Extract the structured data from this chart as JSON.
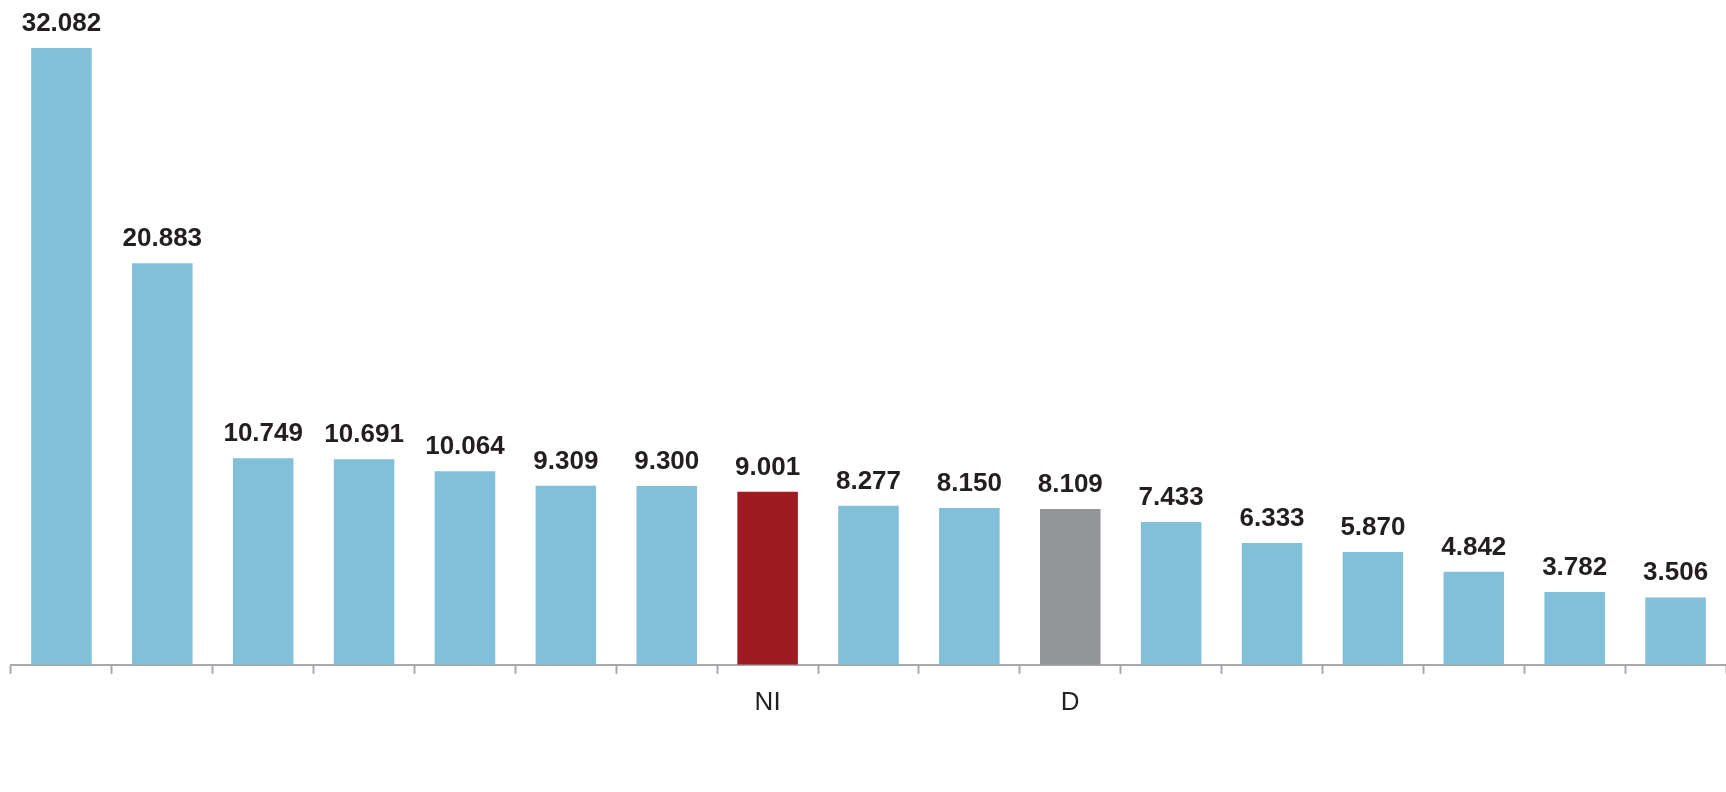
{
  "chart_data": {
    "type": "bar",
    "categories": [
      null,
      null,
      null,
      null,
      null,
      null,
      null,
      "NI",
      null,
      null,
      "D",
      null,
      null,
      null,
      null,
      null,
      null
    ],
    "values": [
      32.082,
      20.883,
      10.749,
      10.691,
      10.064,
      9.309,
      9.3,
      9.001,
      8.277,
      8.15,
      8.109,
      7.433,
      6.333,
      5.87,
      4.842,
      3.782,
      3.506
    ],
    "colors": [
      "#82bfd8",
      "#82bfd8",
      "#82bfd8",
      "#82bfd8",
      "#82bfd8",
      "#82bfd8",
      "#82bfd8",
      "#9e1b22",
      "#82bfd8",
      "#82bfd8",
      "#939598",
      "#82bfd8",
      "#82bfd8",
      "#82bfd8",
      "#82bfd8",
      "#82bfd8",
      "#82bfd8"
    ],
    "value_labels": [
      "32.082",
      "20.883",
      "10.749",
      "10.691",
      "10.064",
      "9.309",
      "9.300",
      "9.001",
      "8.277",
      "8.150",
      "8.109",
      "7.433",
      "6.333",
      "5.870",
      "4.842",
      "3.782",
      "3.506"
    ]
  }
}
